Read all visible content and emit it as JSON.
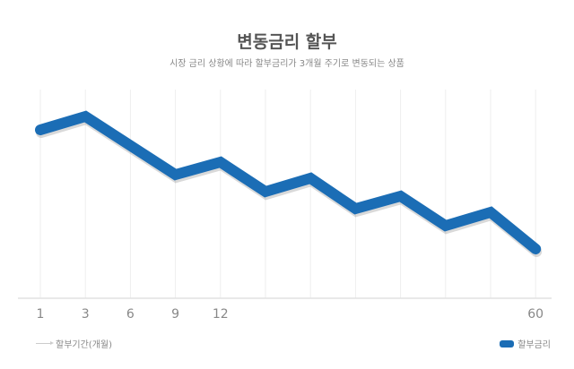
{
  "chart_data": {
    "type": "line",
    "title": "변동금리 할부",
    "subtitle": "시장 금리 상황에 따라 할부금리가 3개월 주기로 변동되는 상품",
    "categories": [
      "1",
      "3",
      "6",
      "9",
      "12",
      "",
      "",
      "",
      "",
      "",
      "",
      "60"
    ],
    "series": [
      {
        "name": "할부금리",
        "color": "#1b6db5",
        "values": [
          188,
          203,
          null,
          138,
          152,
          119,
          134,
          100,
          114,
          81,
          96,
          55
        ]
      }
    ],
    "xlabel": "할부기간(개월)",
    "ylabel": "",
    "ylim": [
      0,
      220
    ],
    "grid": "vertical",
    "legend": "bottom-right",
    "gridline_color": "#eeeeee"
  }
}
